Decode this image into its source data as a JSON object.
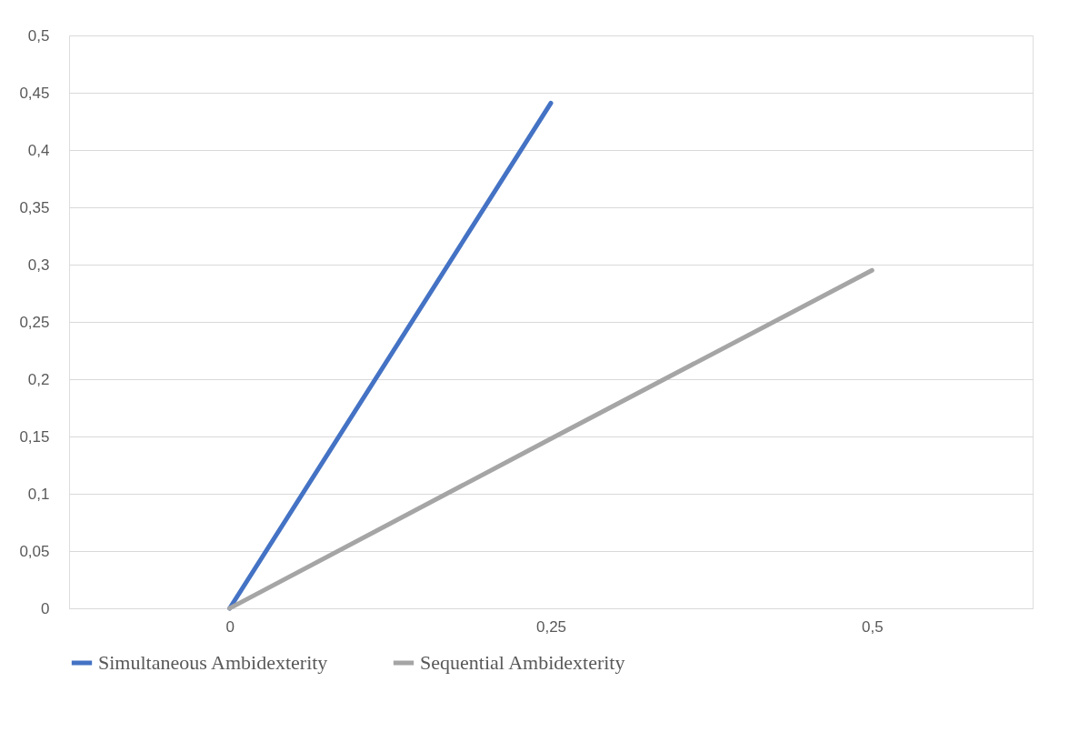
{
  "chart_data": {
    "type": "line",
    "categories": [
      "0",
      "0,25",
      "0,5"
    ],
    "series": [
      {
        "name": "Simultaneous Ambidexterity",
        "color": "#4472c4",
        "values": [
          0,
          0.441,
          null
        ]
      },
      {
        "name": "Sequential Ambidexterity",
        "color": "#a5a5a5",
        "values": [
          0,
          0.148,
          0.295
        ]
      }
    ],
    "ylim": [
      0,
      0.5
    ],
    "yticks": [
      0,
      {
        "value": 0.05,
        "label": "0,05"
      },
      {
        "value": 0.1,
        "label": "0,1"
      },
      {
        "value": 0.15,
        "label": "0,15"
      },
      {
        "value": 0.2,
        "label": "0,2"
      },
      {
        "value": 0.25,
        "label": "0,25"
      },
      {
        "value": 0.3,
        "label": "0,3"
      },
      {
        "value": 0.35,
        "label": "0,35"
      },
      {
        "value": 0.4,
        "label": "0,4"
      },
      {
        "value": 0.45,
        "label": "0,45"
      },
      {
        "value": 0.5,
        "label": "0,5"
      }
    ],
    "grid": "y",
    "legend": "bottom",
    "marker": "none",
    "line_style": "solid"
  }
}
